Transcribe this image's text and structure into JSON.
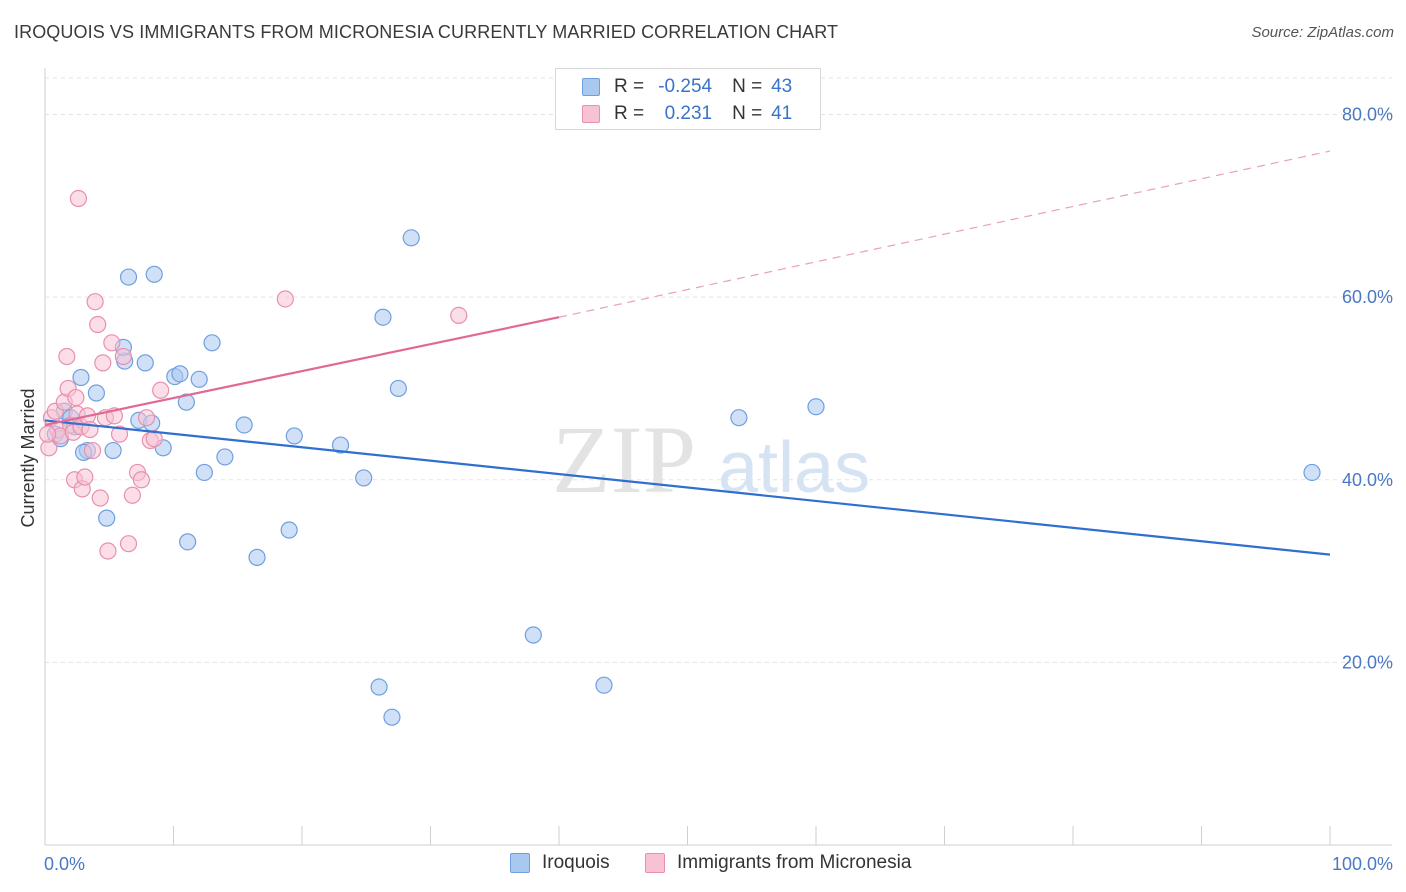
{
  "header": {
    "title": "IROQUOIS VS IMMIGRANTS FROM MICRONESIA CURRENTLY MARRIED CORRELATION CHART",
    "source": "Source: ZipAtlas.com"
  },
  "watermark": {
    "zip": "ZIP",
    "atlas": "atlas"
  },
  "legend": {
    "rows": [
      {
        "r_label": "R = ",
        "r_value": "-0.254",
        "n_label": "N = ",
        "n_value": "43",
        "color": "#a9c8f0",
        "border": "#6f9fe0"
      },
      {
        "r_label": "R = ",
        "r_value": "0.231",
        "n_label": "N = ",
        "n_value": "41",
        "color": "#f7c3d3",
        "border": "#e890ae"
      }
    ]
  },
  "bottom_legend": {
    "items": [
      {
        "label": "Iroquois",
        "color": "#a9c8f0",
        "border": "#6f9fe0"
      },
      {
        "label": "Immigrants from Micronesia",
        "color": "#f7c3d3",
        "border": "#e890ae"
      }
    ]
  },
  "chart_data": {
    "type": "scatter",
    "title": "IROQUOIS VS IMMIGRANTS FROM MICRONESIA CURRENTLY MARRIED CORRELATION CHART",
    "xlabel": "",
    "ylabel": "Currently Married",
    "xlim": [
      0,
      100
    ],
    "ylim": [
      0,
      84
    ],
    "x_tick_labels": [
      "0.0%",
      "100.0%"
    ],
    "y_ticks": [
      20,
      40,
      60,
      80
    ],
    "y_tick_labels": [
      "20.0%",
      "40.0%",
      "60.0%",
      "80.0%"
    ],
    "grid": true,
    "legend_placement": "top-center",
    "series": [
      {
        "name": "Iroquois",
        "color": "#6f9fe0",
        "fill": "#a9c8f0",
        "trend": {
          "x": [
            0,
            100
          ],
          "y": [
            46.5,
            31.8
          ],
          "dashed_from": null
        },
        "points": [
          [
            0.8,
            45
          ],
          [
            1.2,
            44.5
          ],
          [
            1.5,
            47.5
          ],
          [
            2,
            46.8
          ],
          [
            2.3,
            45.8
          ],
          [
            2.8,
            51.2
          ],
          [
            3.3,
            43.2
          ],
          [
            4,
            49.5
          ],
          [
            4.8,
            35.8
          ],
          [
            5.3,
            43.2
          ],
          [
            6.2,
            53
          ],
          [
            6.1,
            54.5
          ],
          [
            6.5,
            62.2
          ],
          [
            7.3,
            46.5
          ],
          [
            7.8,
            52.8
          ],
          [
            8.3,
            46.2
          ],
          [
            8.5,
            62.5
          ],
          [
            9.2,
            43.5
          ],
          [
            10.1,
            51.3
          ],
          [
            10.5,
            51.6
          ],
          [
            11,
            48.5
          ],
          [
            11.1,
            33.2
          ],
          [
            12,
            51
          ],
          [
            12.4,
            40.8
          ],
          [
            13,
            55
          ],
          [
            14,
            42.5
          ],
          [
            15.5,
            46
          ],
          [
            16.5,
            31.5
          ],
          [
            19,
            34.5
          ],
          [
            19.4,
            44.8
          ],
          [
            23,
            43.8
          ],
          [
            24.8,
            40.2
          ],
          [
            26,
            17.3
          ],
          [
            26.3,
            57.8
          ],
          [
            27,
            14
          ],
          [
            27.5,
            50
          ],
          [
            28.5,
            66.5
          ],
          [
            38,
            23
          ],
          [
            43.5,
            17.5
          ],
          [
            54,
            46.8
          ],
          [
            60,
            48
          ],
          [
            98.6,
            40.8
          ],
          [
            3,
            43
          ]
        ]
      },
      {
        "name": "Immigrants from Micronesia",
        "color": "#e890ae",
        "fill": "#f7c3d3",
        "trend": {
          "x": [
            0,
            40,
            100
          ],
          "y": [
            46,
            57.8,
            76
          ],
          "dashed_from": 40
        },
        "points": [
          [
            0.3,
            43.5
          ],
          [
            0.5,
            46.8
          ],
          [
            0.8,
            47.5
          ],
          [
            1,
            45.5
          ],
          [
            1.2,
            44.8
          ],
          [
            1.5,
            48.5
          ],
          [
            1.7,
            53.5
          ],
          [
            1.8,
            50
          ],
          [
            2,
            46
          ],
          [
            2.2,
            45.2
          ],
          [
            2.3,
            40
          ],
          [
            2.4,
            49
          ],
          [
            2.5,
            47.2
          ],
          [
            2.6,
            70.8
          ],
          [
            2.8,
            45.8
          ],
          [
            2.9,
            39
          ],
          [
            3.1,
            40.3
          ],
          [
            3.3,
            47
          ],
          [
            3.5,
            45.5
          ],
          [
            3.7,
            43.2
          ],
          [
            3.9,
            59.5
          ],
          [
            4.1,
            57
          ],
          [
            4.3,
            38
          ],
          [
            4.5,
            52.8
          ],
          [
            4.7,
            46.8
          ],
          [
            4.9,
            32.2
          ],
          [
            5.2,
            55
          ],
          [
            5.4,
            47
          ],
          [
            5.8,
            45
          ],
          [
            6.1,
            53.5
          ],
          [
            6.5,
            33
          ],
          [
            6.8,
            38.3
          ],
          [
            7.2,
            40.8
          ],
          [
            7.5,
            40
          ],
          [
            7.9,
            46.8
          ],
          [
            8.2,
            44.3
          ],
          [
            8.5,
            44.5
          ],
          [
            9,
            49.8
          ],
          [
            18.7,
            59.8
          ],
          [
            32.2,
            58
          ],
          [
            0.2,
            45
          ]
        ]
      }
    ]
  }
}
